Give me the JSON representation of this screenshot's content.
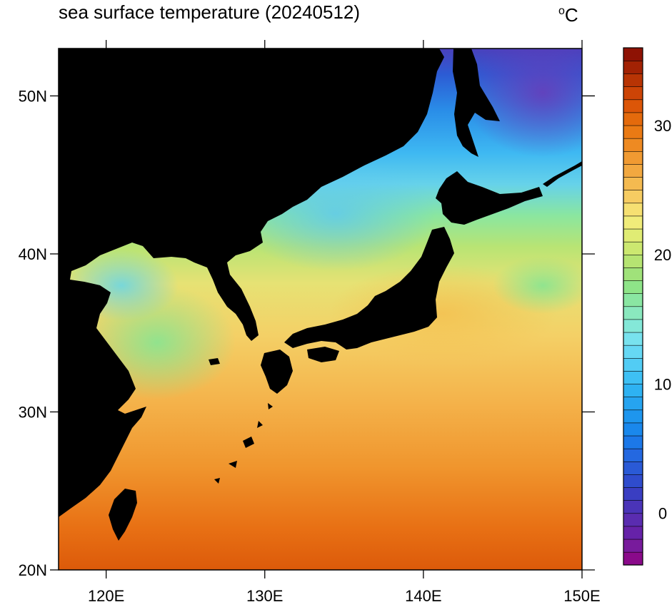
{
  "title": "sea surface temperature (20240512)",
  "units": {
    "degree": "o",
    "letter": "C"
  },
  "map": {
    "type": "filled-contour-map",
    "lon_range": [
      117,
      150
    ],
    "lat_range": [
      20,
      53
    ],
    "land_color": "#000000",
    "lon_ticks": [
      {
        "value": 120,
        "label": "120E"
      },
      {
        "value": 130,
        "label": "130E"
      },
      {
        "value": 140,
        "label": "140E"
      },
      {
        "value": 150,
        "label": "150E"
      }
    ],
    "lat_ticks": [
      {
        "value": 20,
        "label": "20N"
      },
      {
        "value": 30,
        "label": "30N"
      },
      {
        "value": 40,
        "label": "40N"
      },
      {
        "value": 50,
        "label": "50N"
      }
    ]
  },
  "colorbar": {
    "min": -4,
    "max": 36,
    "step": 1,
    "tick_values": [
      0,
      10,
      20,
      30
    ],
    "tick_labels": [
      "0",
      "10",
      "20",
      "30"
    ],
    "colors": [
      "#8a0a8a",
      "#781b9c",
      "#6622a8",
      "#5a2cb0",
      "#4a34b8",
      "#3a3ec2",
      "#2f4ccd",
      "#2a5ad6",
      "#2468e0",
      "#1c78e8",
      "#1a88ec",
      "#1e96ee",
      "#26a4f0",
      "#2eb2f2",
      "#3ec0f4",
      "#52ccf4",
      "#66d8f4",
      "#78e2ee",
      "#84e8d8",
      "#8ae8be",
      "#8ae6a2",
      "#8ee488",
      "#a0e27a",
      "#b6e472",
      "#cce870",
      "#e0ec74",
      "#f0ec7a",
      "#f6e072",
      "#f6cc62",
      "#f4ba50",
      "#f2a840",
      "#f09a32",
      "#ee8a22",
      "#ea7a14",
      "#e46a0c",
      "#dc5608",
      "#cc4406",
      "#b83404",
      "#a22204",
      "#8e1204"
    ]
  }
}
